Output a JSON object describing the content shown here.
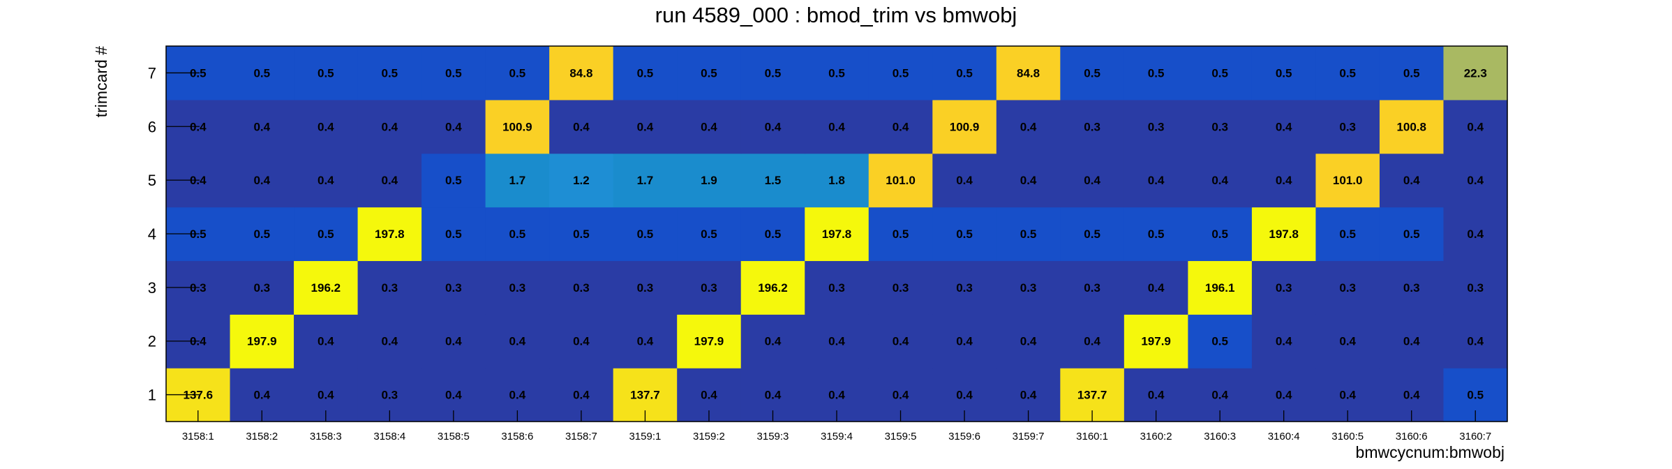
{
  "chart_data": {
    "type": "heatmap",
    "title": "run 4589_000 : bmod_trim vs bmwobj",
    "xlabel": "bmwcycnum:bmwobj",
    "ylabel": "trimcard #",
    "x_categories": [
      "3158:1",
      "3158:2",
      "3158:3",
      "3158:4",
      "3158:5",
      "3158:6",
      "3158:7",
      "3159:1",
      "3159:2",
      "3159:3",
      "3159:4",
      "3159:5",
      "3159:6",
      "3159:7",
      "3160:1",
      "3160:2",
      "3160:3",
      "3160:4",
      "3160:5",
      "3160:6",
      "3160:7"
    ],
    "y_categories": [
      "1",
      "2",
      "3",
      "4",
      "5",
      "6",
      "7"
    ],
    "values": [
      [
        137.6,
        0.4,
        0.4,
        0.3,
        0.4,
        0.4,
        0.4,
        137.7,
        0.4,
        0.4,
        0.4,
        0.4,
        0.4,
        0.4,
        137.7,
        0.4,
        0.4,
        0.4,
        0.4,
        0.4,
        0.5
      ],
      [
        0.4,
        197.9,
        0.4,
        0.4,
        0.4,
        0.4,
        0.4,
        0.4,
        197.9,
        0.4,
        0.4,
        0.4,
        0.4,
        0.4,
        0.4,
        197.9,
        0.5,
        0.4,
        0.4,
        0.4,
        0.4
      ],
      [
        0.3,
        0.3,
        196.2,
        0.3,
        0.3,
        0.3,
        0.3,
        0.3,
        0.3,
        196.2,
        0.3,
        0.3,
        0.3,
        0.3,
        0.3,
        0.4,
        196.1,
        0.3,
        0.3,
        0.3,
        0.3
      ],
      [
        0.5,
        0.5,
        0.5,
        197.8,
        0.5,
        0.5,
        0.5,
        0.5,
        0.5,
        0.5,
        197.8,
        0.5,
        0.5,
        0.5,
        0.5,
        0.5,
        0.5,
        197.8,
        0.5,
        0.5,
        0.4
      ],
      [
        0.4,
        0.4,
        0.4,
        0.4,
        0.5,
        1.7,
        1.2,
        1.7,
        1.9,
        1.5,
        1.8,
        101.0,
        0.4,
        0.4,
        0.4,
        0.4,
        0.4,
        0.4,
        101.0,
        0.4,
        0.4
      ],
      [
        0.4,
        0.4,
        0.4,
        0.4,
        0.4,
        100.9,
        0.4,
        0.4,
        0.4,
        0.4,
        0.4,
        0.4,
        100.9,
        0.4,
        0.3,
        0.3,
        0.3,
        0.4,
        0.3,
        100.8,
        0.4
      ],
      [
        0.5,
        0.5,
        0.5,
        0.5,
        0.5,
        0.5,
        84.8,
        0.5,
        0.5,
        0.5,
        0.5,
        0.5,
        0.5,
        84.8,
        0.5,
        0.5,
        0.5,
        0.5,
        0.5,
        0.5,
        22.3
      ]
    ],
    "colormap": [
      {
        "max": 0.35,
        "color": "#2a3ca5"
      },
      {
        "max": 0.45,
        "color": "#2a3ca5"
      },
      {
        "max": 0.55,
        "color": "#174fc9"
      },
      {
        "max": 1.3,
        "color": "#1e8ed4"
      },
      {
        "max": 2.0,
        "color": "#1a8ccd"
      },
      {
        "max": 50,
        "color": "#a9b962"
      },
      {
        "max": 110,
        "color": "#fad025"
      },
      {
        "max": 170,
        "color": "#f6e21a"
      },
      {
        "max": 9999,
        "color": "#f5f80c"
      }
    ],
    "grid": false
  }
}
